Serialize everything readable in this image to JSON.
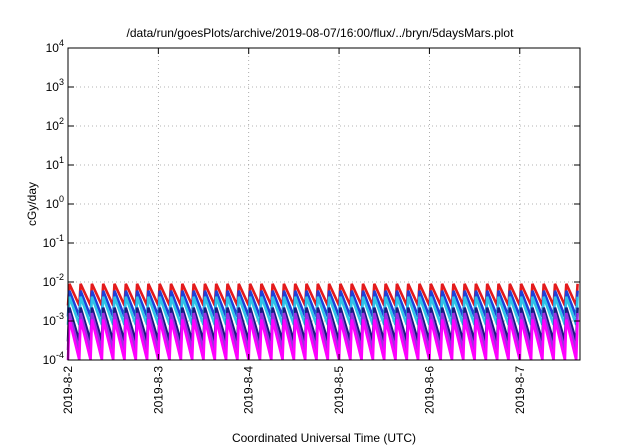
{
  "chart_data": {
    "type": "line",
    "title": "/data/run/goesPlots/archive/2019-08-07/16:00/flux/../bryn/5daysMars.plot",
    "xlabel": "Coordinated Universal Time (UTC)",
    "ylabel": "cGy/day",
    "yscale": "log",
    "ylim": [
      0.0001,
      10000
    ],
    "ytick_exponents": [
      "4",
      "3",
      "2",
      "1",
      "0",
      "-1",
      "-2",
      "-3",
      "-4"
    ],
    "xlim": [
      "2019-08-02T00:00",
      "2019-08-07T16:00"
    ],
    "x_tick_labels": [
      "2019-8-2",
      "2019-8-3",
      "2019-8-4",
      "2019-8-5",
      "2019-8-6",
      "2019-8-7"
    ],
    "grid": true,
    "legend": "none",
    "sawtooth_period_hours": 3,
    "series": [
      {
        "color": "#e41a1c",
        "peak": 0.009,
        "trough": 0.0025
      },
      {
        "color": "#1f3fd9",
        "peak": 0.006,
        "trough": 0.0013
      },
      {
        "color": "#2ec4e8",
        "peak": 0.0042,
        "trough": 0.0008
      },
      {
        "color": "#1a1a80",
        "peak": 0.0022,
        "trough": 0.0003
      },
      {
        "color": "#9b30e0",
        "peak": 0.0016,
        "trough": 0.00018
      },
      {
        "color": "#ff00ff",
        "peak": 0.0011,
        "trough": 0.0001
      }
    ]
  }
}
